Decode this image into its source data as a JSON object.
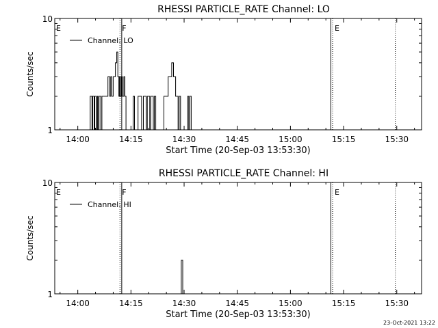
{
  "timestamp": "23-Oct-2021 13:22",
  "chart_data": [
    {
      "type": "line",
      "title": "RHESSI PARTICLE_RATE Channel: LO",
      "xlabel": "Start Time (20-Sep-03 13:53:30)",
      "ylabel": "Counts/sec",
      "x_ticks": [
        "14:00",
        "14:15",
        "14:30",
        "14:45",
        "15:00",
        "15:15",
        "15:30"
      ],
      "x_tick_minutes": [
        0,
        15,
        30,
        45,
        60,
        75,
        90
      ],
      "xlim_minutes": [
        -6.5,
        97
      ],
      "y_scale": "log",
      "ylim": [
        1,
        10
      ],
      "y_ticks": [
        "1",
        "10"
      ],
      "legend": {
        "label": "Channel: LO",
        "placement": "top-left"
      },
      "series": [
        {
          "name": "Channel: LO",
          "x": [
            3.3,
            3.5,
            3.8,
            4.0,
            4.2,
            4.4,
            4.6,
            4.8,
            5.0,
            5.2,
            5.5,
            5.7,
            6.0,
            6.2,
            6.5,
            6.8,
            7.0,
            7.5,
            8.0,
            8.5,
            9.0,
            9.3,
            9.6,
            10.0,
            10.3,
            10.6,
            11.0,
            11.3,
            11.6,
            11.8,
            12.0,
            12.3,
            12.6,
            13.0,
            13.3,
            13.6,
            14.0,
            14.3,
            14.6,
            15.0,
            15.3,
            15.6,
            16.0,
            16.3,
            16.6,
            17.0,
            17.5,
            18.0,
            18.5,
            19.0,
            19.3,
            19.6,
            20.0,
            20.3,
            20.6,
            21.0,
            21.3,
            21.6,
            22.0,
            22.3,
            22.6,
            23.0,
            23.3,
            23.6,
            24.0,
            24.3,
            24.6,
            25.0,
            25.5,
            26.0,
            26.5,
            27.0,
            27.3,
            27.6,
            28.0,
            28.3,
            28.6,
            29.0,
            29.3,
            29.6,
            30.0,
            30.3,
            30.6,
            31.0,
            31.3,
            31.6,
            32.0,
            32.3,
            32.6,
            33.0,
            33.3,
            33.6,
            34.0,
            34.3,
            34.6
          ],
          "y": [
            1,
            2,
            2,
            1,
            2,
            2,
            1,
            2,
            2,
            1,
            2,
            1,
            2,
            2,
            1,
            2,
            2,
            2,
            2,
            3,
            2,
            3,
            2,
            3,
            3,
            4,
            5,
            3,
            2,
            3,
            2,
            3,
            2,
            3,
            2,
            1,
            1,
            1,
            1,
            1,
            1,
            2,
            1,
            1,
            1,
            2,
            2,
            1,
            2,
            2,
            1,
            2,
            2,
            1,
            2,
            2,
            1,
            2,
            1,
            1,
            1,
            1,
            1,
            1,
            1,
            2,
            2,
            2,
            3,
            3,
            4,
            3,
            3,
            2,
            2,
            1,
            2,
            1,
            1,
            1,
            1,
            1,
            1,
            2,
            1,
            2,
            1,
            1,
            1,
            1,
            1,
            1,
            1,
            1,
            1
          ]
        }
      ],
      "vlines": [
        {
          "label": "F",
          "x": 11.9,
          "style": "dotted"
        },
        {
          "label": "",
          "x": 12.4,
          "style": "solid"
        },
        {
          "label": "",
          "x": 71.4,
          "style": "solid"
        },
        {
          "label": "E",
          "x": 71.9,
          "style": "dotted"
        },
        {
          "label": "",
          "x": 89.6,
          "style": "dotted"
        }
      ],
      "edge_label": "E"
    },
    {
      "type": "line",
      "title": "RHESSI PARTICLE_RATE Channel: HI",
      "xlabel": "Start Time (20-Sep-03 13:53:30)",
      "ylabel": "Counts/sec",
      "x_ticks": [
        "14:00",
        "14:15",
        "14:30",
        "14:45",
        "15:00",
        "15:15",
        "15:30"
      ],
      "x_tick_minutes": [
        0,
        15,
        30,
        45,
        60,
        75,
        90
      ],
      "xlim_minutes": [
        -6.5,
        97
      ],
      "y_scale": "log",
      "ylim": [
        1,
        10
      ],
      "y_ticks": [
        "1",
        "10"
      ],
      "legend": {
        "label": "Channel: HI",
        "placement": "top-left"
      },
      "series": [
        {
          "name": "Channel: HI",
          "x": [
            28.9,
            29.2,
            29.4,
            29.6,
            29.8
          ],
          "y": [
            1,
            2,
            2,
            1,
            1
          ]
        }
      ],
      "vlines": [
        {
          "label": "F",
          "x": 11.9,
          "style": "dotted"
        },
        {
          "label": "",
          "x": 12.4,
          "style": "solid"
        },
        {
          "label": "",
          "x": 71.4,
          "style": "solid"
        },
        {
          "label": "E",
          "x": 71.9,
          "style": "dotted"
        },
        {
          "label": "",
          "x": 89.6,
          "style": "dotted"
        }
      ],
      "edge_label": "E"
    }
  ]
}
